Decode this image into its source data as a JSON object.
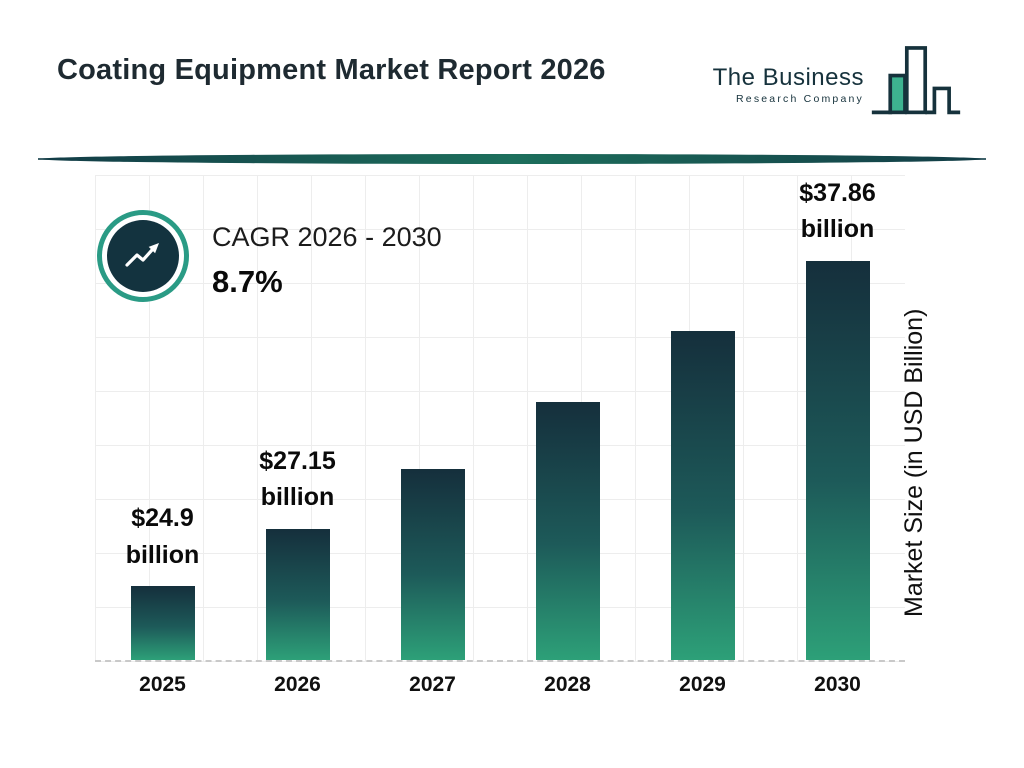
{
  "header": {
    "title": "Coating Equipment Market Report 2026",
    "logo": {
      "line1": "The Business",
      "line2": "Research Company"
    }
  },
  "cagr": {
    "label": "CAGR 2026 - 2030",
    "value": "8.7%"
  },
  "chart_data": {
    "type": "bar",
    "title": "Coating Equipment Market Report 2026",
    "categories": [
      "2025",
      "2026",
      "2027",
      "2028",
      "2029",
      "2030"
    ],
    "values": [
      24.9,
      27.15,
      29.5,
      32.1,
      34.9,
      37.86
    ],
    "bar_labels": [
      "$24.9\nbillion",
      "$27.15\nbillion",
      "",
      "",
      "",
      "$37.86\nbillion"
    ],
    "xlabel": "",
    "ylabel": "Market Size (in USD Billion)",
    "ylim": [
      22,
      41
    ],
    "grid": true,
    "legend": "none",
    "colors": {
      "bar_gradient_top": "#152f3c",
      "bar_gradient_bottom": "#2da078",
      "accent_teal": "#2a9b85",
      "navy": "#13333f",
      "divider_teal": "#1d6f5c",
      "logo_teal": "#3db390"
    }
  }
}
